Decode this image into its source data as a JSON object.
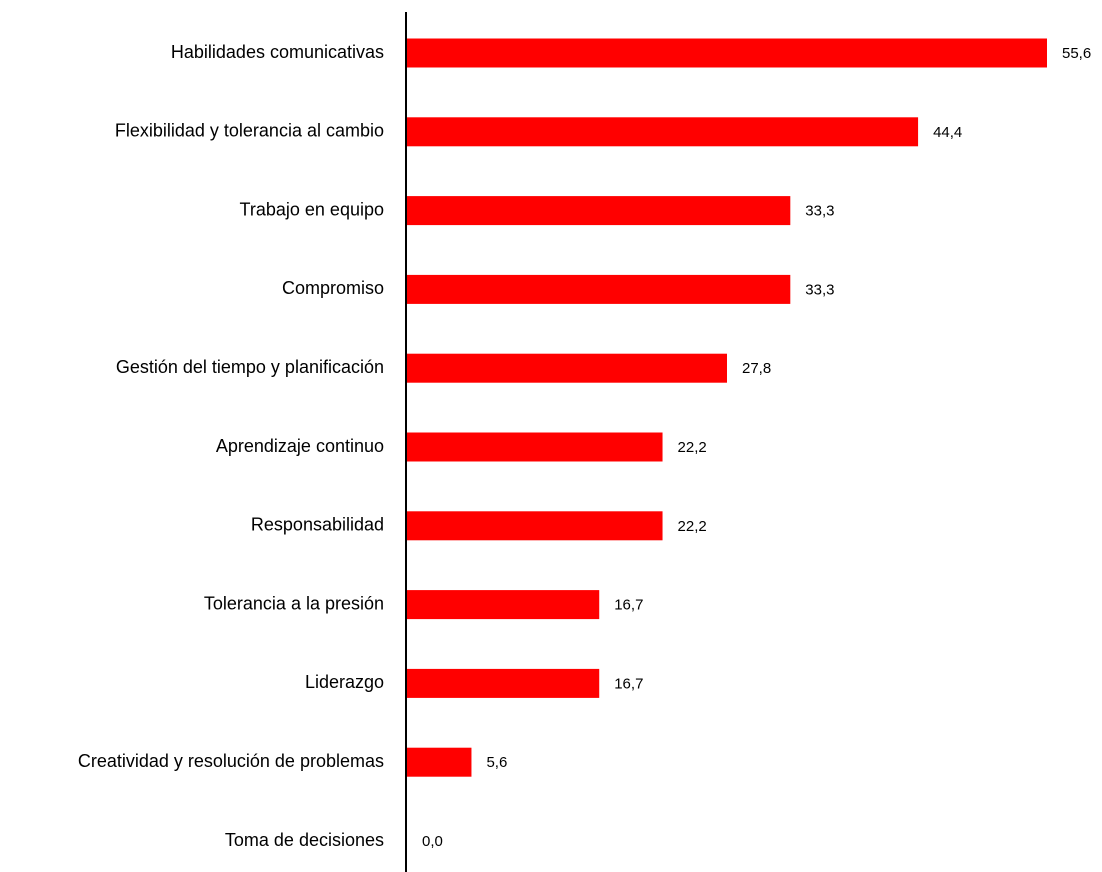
{
  "chart_data": {
    "type": "bar",
    "orientation": "horizontal",
    "categories": [
      "Habilidades comunicativas",
      "Flexibilidad y tolerancia al cambio",
      "Trabajo en equipo",
      "Compromiso",
      "Gestión del tiempo y planificación",
      "Aprendizaje continuo",
      "Responsabilidad",
      "Tolerancia a la presión",
      "Liderazgo",
      "Creatividad y resolución de problemas",
      "Toma de decisiones"
    ],
    "values": [
      55.6,
      44.4,
      33.3,
      33.3,
      27.8,
      22.2,
      22.2,
      16.7,
      16.7,
      5.6,
      0.0
    ],
    "value_labels": [
      "55,6",
      "44,4",
      "33,3",
      "33,3",
      "27,8",
      "22,2",
      "22,2",
      "16,7",
      "16,7",
      "5,6",
      "0,0"
    ],
    "title": "",
    "xlabel": "",
    "ylabel": "",
    "xlim": [
      0,
      55.6
    ],
    "grid": false,
    "legend": "none",
    "bar_color": "#ff0000",
    "axis_color": "#000000"
  }
}
